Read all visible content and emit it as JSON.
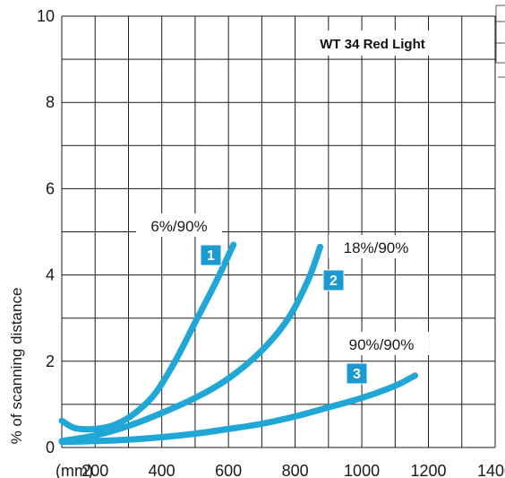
{
  "chart_data": {
    "type": "line",
    "title": "WT 34 Red Light",
    "xlabel": "",
    "x_unit_label": "(mm)",
    "ylabel": "% of scanning distance",
    "xlim": [
      100,
      1400
    ],
    "ylim": [
      0,
      10
    ],
    "grid": true,
    "x_tick_labels": [
      "200",
      "400",
      "600",
      "800",
      "1000",
      "1200",
      "1400"
    ],
    "y_tick_labels": [
      "0",
      "2",
      "4",
      "6",
      "8",
      "10"
    ],
    "line_color": "#21a7d6",
    "badge_color": "#1b9ad2",
    "series": [
      {
        "name": "6%/90%",
        "badge": "1",
        "points": [
          [
            100,
            0.62
          ],
          [
            140,
            0.45
          ],
          [
            200,
            0.43
          ],
          [
            260,
            0.53
          ],
          [
            320,
            0.8
          ],
          [
            380,
            1.25
          ],
          [
            440,
            2.0
          ],
          [
            500,
            2.9
          ],
          [
            560,
            3.8
          ],
          [
            615,
            4.7
          ]
        ]
      },
      {
        "name": "18%/90%",
        "badge": "2",
        "points": [
          [
            100,
            0.15
          ],
          [
            200,
            0.28
          ],
          [
            300,
            0.5
          ],
          [
            400,
            0.8
          ],
          [
            500,
            1.15
          ],
          [
            600,
            1.6
          ],
          [
            700,
            2.25
          ],
          [
            780,
            3.0
          ],
          [
            840,
            3.9
          ],
          [
            875,
            4.65
          ]
        ]
      },
      {
        "name": "90%/90%",
        "badge": "3",
        "points": [
          [
            100,
            0.13
          ],
          [
            200,
            0.15
          ],
          [
            300,
            0.18
          ],
          [
            400,
            0.24
          ],
          [
            500,
            0.32
          ],
          [
            600,
            0.43
          ],
          [
            700,
            0.55
          ],
          [
            800,
            0.72
          ],
          [
            900,
            0.93
          ],
          [
            1000,
            1.15
          ],
          [
            1100,
            1.43
          ],
          [
            1160,
            1.67
          ]
        ]
      }
    ]
  }
}
